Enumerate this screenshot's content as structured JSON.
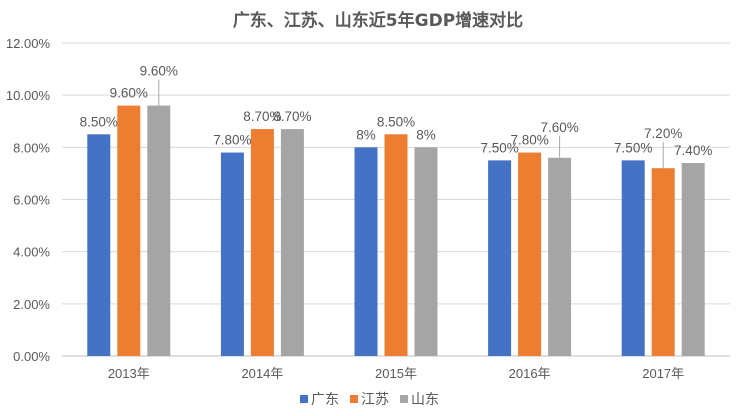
{
  "chart_data": {
    "type": "bar",
    "title": "广东、江苏、山东近5年GDP增速对比",
    "xlabel": "",
    "ylabel": "",
    "categories": [
      "2013年",
      "2014年",
      "2015年",
      "2016年",
      "2017年"
    ],
    "ylim": [
      0,
      12
    ],
    "yticks": [
      "0.00%",
      "2.00%",
      "4.00%",
      "6.00%",
      "8.00%",
      "10.00%",
      "12.00%"
    ],
    "grid": true,
    "legend_position": "bottom",
    "series": [
      {
        "name": "广东",
        "color": "#4472C4",
        "values": [
          8.5,
          7.8,
          8,
          7.5,
          7.5
        ],
        "labels": [
          "8.50%",
          "7.80%",
          "8%",
          "7.50%",
          "7.50%"
        ]
      },
      {
        "name": "江苏",
        "color": "#ED7D31",
        "values": [
          9.6,
          8.7,
          8.5,
          7.8,
          7.2
        ],
        "labels": [
          "9.60%",
          "8.70%",
          "8.50%",
          "7.80%",
          "7.20%"
        ]
      },
      {
        "name": "山东",
        "color": "#A5A5A5",
        "values": [
          9.6,
          8.7,
          8,
          7.6,
          7.4
        ],
        "labels": [
          "9.60%",
          "8.70%",
          "8%",
          "7.60%",
          "7.40%"
        ]
      }
    ]
  }
}
